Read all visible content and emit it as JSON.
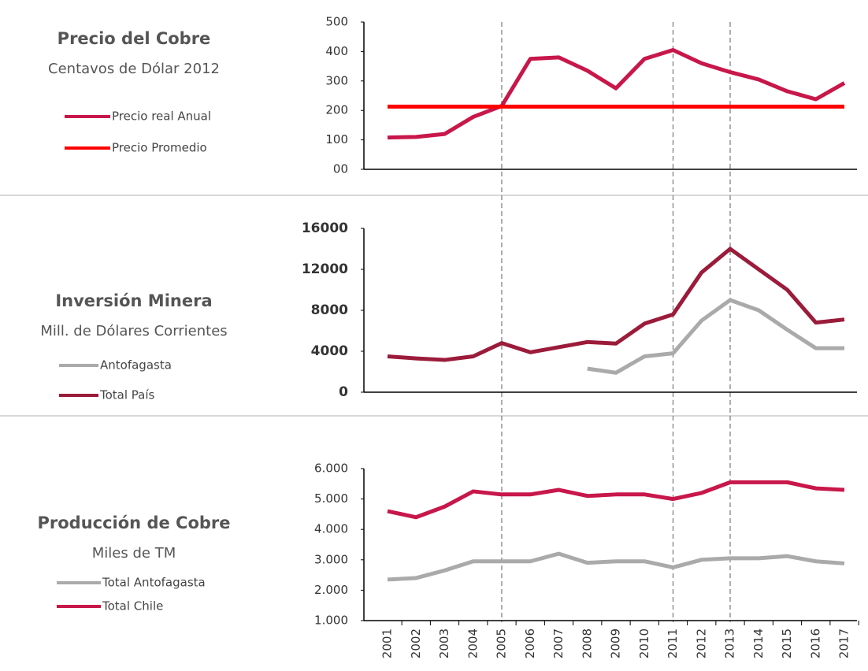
{
  "chart_data": [
    {
      "type": "line",
      "title": "Precio del Cobre",
      "subtitle": "Centavos de Dólar 2012",
      "ylim": [
        0,
        500
      ],
      "yticks": [
        {
          "value": 0,
          "label": "00"
        },
        100,
        200,
        300,
        400,
        500
      ],
      "series": [
        {
          "name": "Precio real Anual",
          "color": "#c8174a",
          "values": [
            108,
            110,
            120,
            178,
            215,
            375,
            380,
            335,
            275,
            375,
            405,
            360,
            330,
            305,
            265,
            238,
            293
          ]
        },
        {
          "name": "Precio Promedio",
          "color": "#ff0000",
          "values": [
            213,
            213,
            213,
            213,
            213,
            213,
            213,
            213,
            213,
            213,
            213,
            213,
            213,
            213,
            213,
            213,
            213
          ]
        }
      ]
    },
    {
      "type": "line",
      "title": "Inversión Minera",
      "subtitle": "Mill. de  Dólares Corrientes",
      "ylim": [
        0,
        16000
      ],
      "yticks": [
        0,
        4000,
        8000,
        12000,
        16000
      ],
      "series": [
        {
          "name": "Antofagasta",
          "color": "#aaaaaa",
          "values": [
            null,
            null,
            null,
            null,
            null,
            null,
            null,
            2300,
            1900,
            3500,
            3800,
            7000,
            9000,
            8000,
            6100,
            4300,
            4300
          ]
        },
        {
          "name": "Total País",
          "color": "#9b1b3a",
          "values": [
            3500,
            3300,
            3150,
            3500,
            4800,
            3900,
            4400,
            4900,
            4750,
            6700,
            7600,
            11700,
            14000,
            12000,
            10000,
            6800,
            7100
          ]
        }
      ]
    },
    {
      "type": "line",
      "title": "Producción de Cobre",
      "subtitle": "Miles de TM",
      "categories": [
        "2001",
        "2002",
        "2003",
        "2004",
        "2005",
        "2006",
        "2007",
        "2008",
        "2009",
        "2010",
        "2011",
        "2012",
        "2013",
        "2014",
        "2015",
        "2016",
        "2017"
      ],
      "reference_lines": [
        "2005",
        "2011",
        "2013"
      ],
      "ylim": [
        1000,
        6000
      ],
      "yticks": [
        {
          "value": 1000,
          "label": "1.000"
        },
        {
          "value": 2000,
          "label": "2.000"
        },
        {
          "value": 3000,
          "label": "3.000"
        },
        {
          "value": 4000,
          "label": "4.000"
        },
        {
          "value": 5000,
          "label": "5.000"
        },
        {
          "value": 6000,
          "label": "6.000"
        }
      ],
      "series": [
        {
          "name": "Total Antofagasta",
          "color": "#aaaaaa",
          "values": [
            2350,
            2400,
            2650,
            2950,
            2950,
            2950,
            3200,
            2900,
            2950,
            2950,
            2750,
            3000,
            3050,
            3050,
            3120,
            2950,
            2880
          ]
        },
        {
          "name": "Total Chile",
          "color": "#c8174a",
          "values": [
            4600,
            4400,
            4750,
            5250,
            5150,
            5150,
            5300,
            5100,
            5150,
            5150,
            5000,
            5200,
            5550,
            5550,
            5550,
            5350,
            5300
          ]
        }
      ]
    }
  ]
}
